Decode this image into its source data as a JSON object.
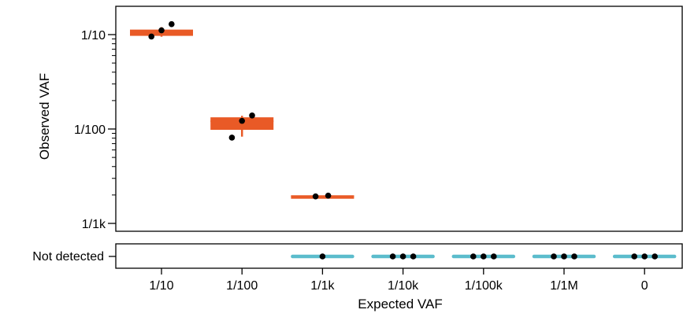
{
  "chart_data": {
    "type": "box",
    "xlabel": "Expected VAF",
    "ylabel": "Observed VAF",
    "categories": [
      "1/10",
      "1/100",
      "1/1k",
      "1/10k",
      "1/100k",
      "1/1M",
      "0"
    ],
    "y_scale": "log10",
    "ylim": [
      0.00085,
      0.19
    ],
    "y_ticks": [
      {
        "value": 0.1,
        "label": "1/10"
      },
      {
        "value": 0.01,
        "label": "1/100"
      },
      {
        "value": 0.001,
        "label": "1/1k"
      }
    ],
    "not_detected_label": "Not detected",
    "detected_color": "#E95A26",
    "not_detected_color": "#5BBCCC",
    "detected": [
      {
        "category": "1/10",
        "box": [
          0.097,
          0.113
        ],
        "median": 0.108,
        "whisker": [
          0.095,
          0.12
        ],
        "points": [
          0.0955,
          0.111,
          0.129
        ]
      },
      {
        "category": "1/100",
        "box": [
          0.0098,
          0.0133
        ],
        "median": 0.0121,
        "whisker": [
          0.0083,
          0.0138
        ],
        "points": [
          0.0081,
          0.0122,
          0.0139
        ]
      },
      {
        "category": "1/1k",
        "box": [
          0.00193,
          0.00197
        ],
        "median": 0.00195,
        "whisker": [
          0.00193,
          0.00197
        ],
        "points": [
          0.00193,
          0.00197
        ]
      }
    ],
    "not_detected_counts": [
      {
        "category": "1/1k",
        "count": 1
      },
      {
        "category": "1/10k",
        "count": 3
      },
      {
        "category": "1/100k",
        "count": 3
      },
      {
        "category": "1/1M",
        "count": 3
      },
      {
        "category": "0",
        "count": 3
      }
    ]
  }
}
